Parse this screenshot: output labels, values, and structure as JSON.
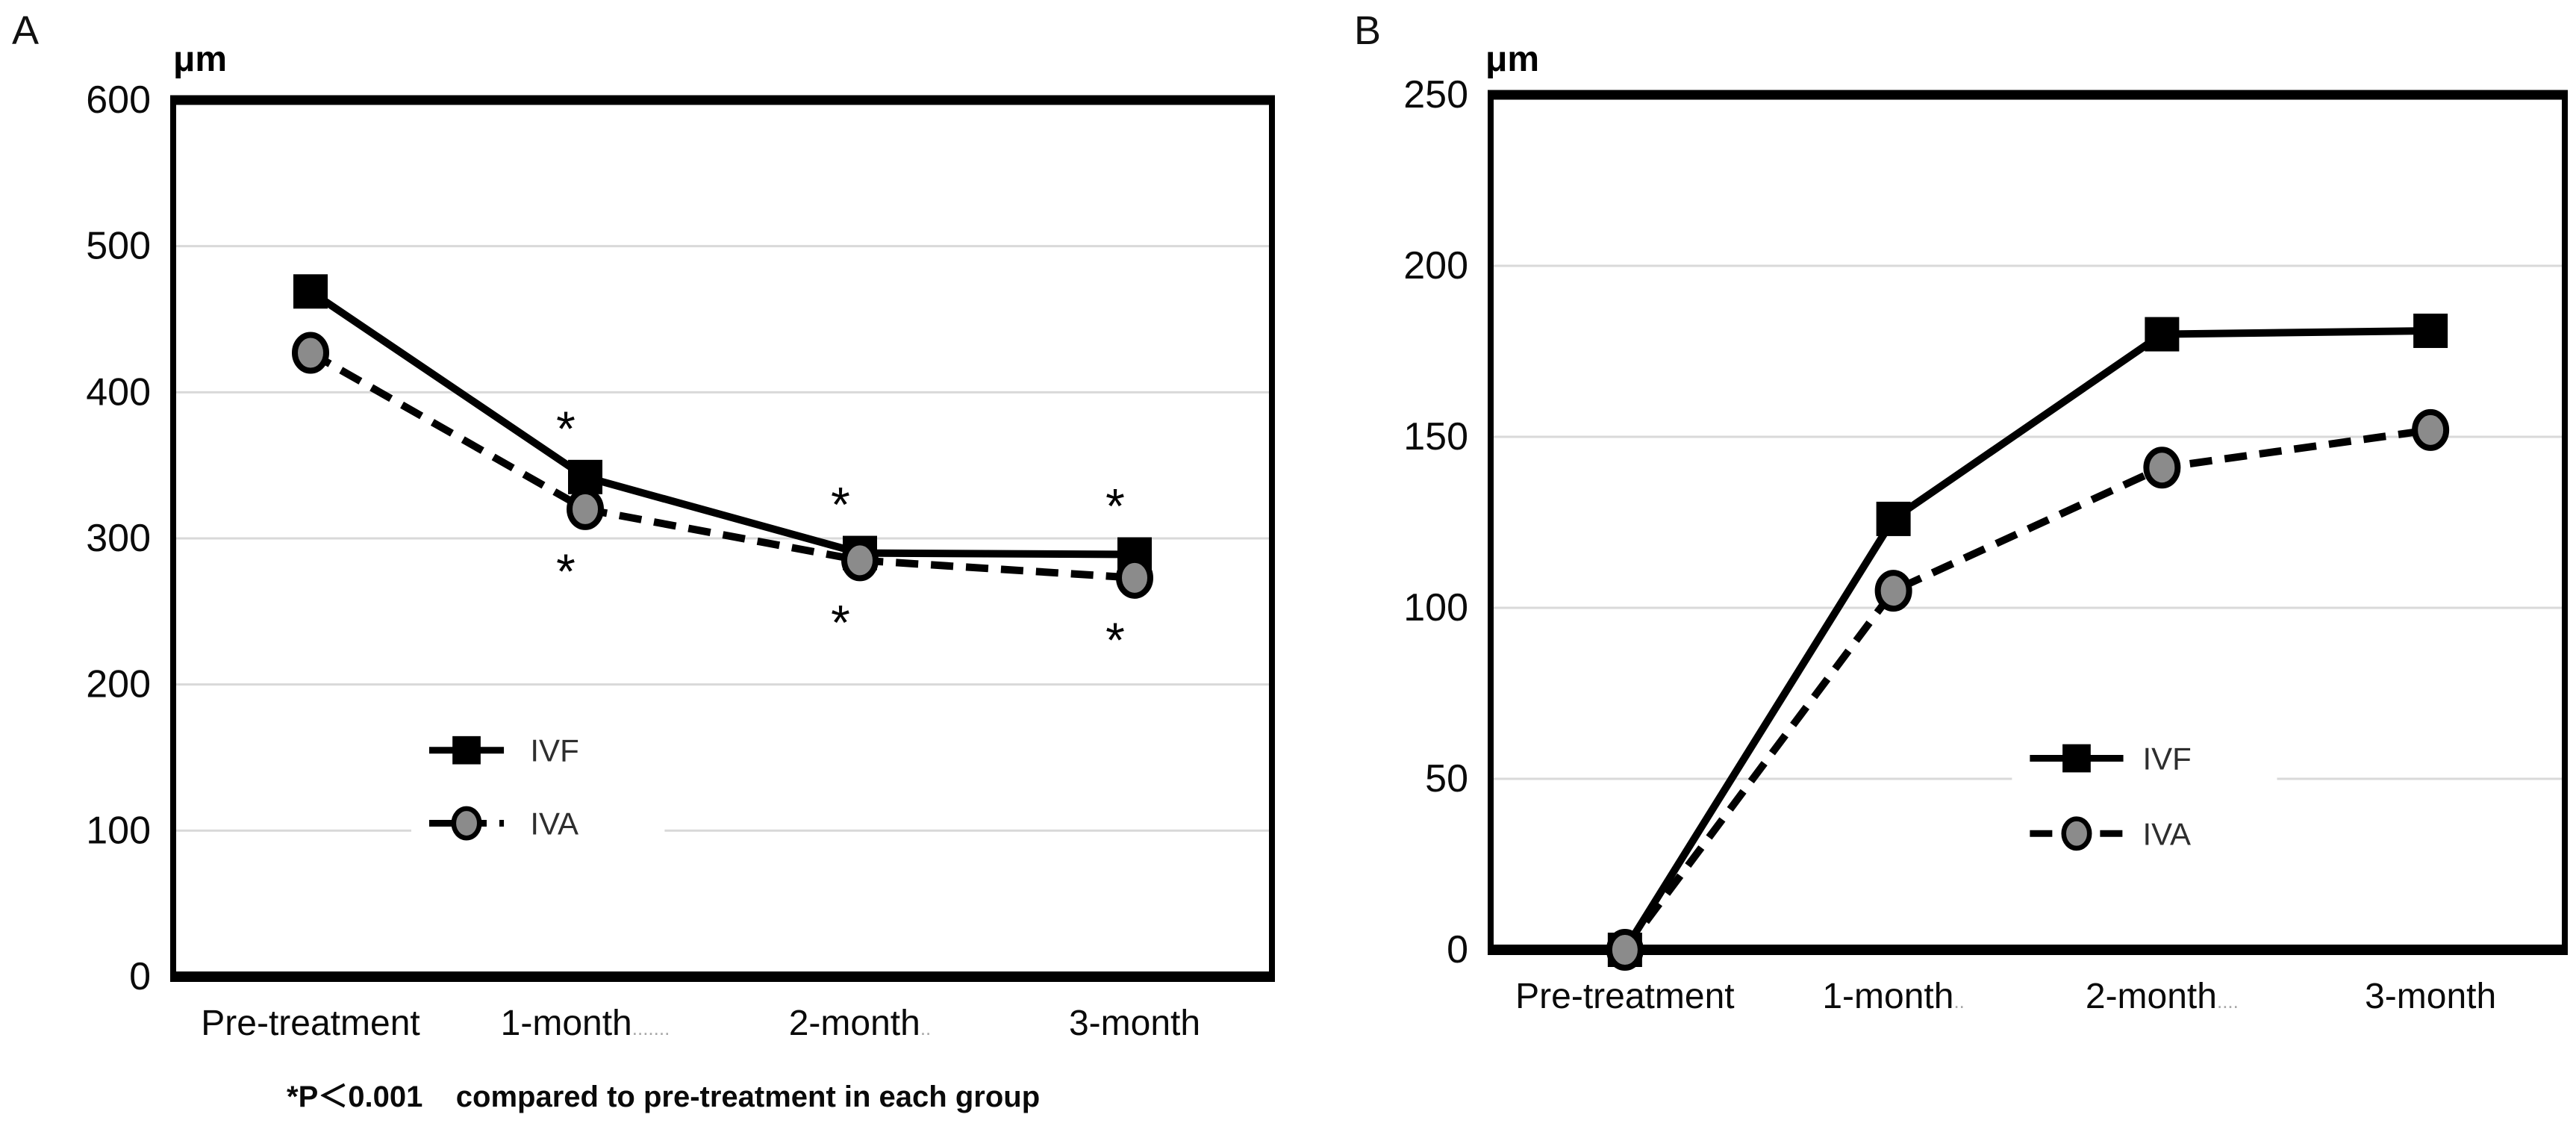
{
  "figure": {
    "background_color": "#ffffff",
    "series_color": "#000000",
    "marker_fill_gray": "#8b8b8b",
    "gridline_color": "#d9d9d9"
  },
  "chart_data": [
    {
      "type": "line",
      "panel_label": "A",
      "unit_label": "μm",
      "title": "",
      "xlabel": "",
      "ylabel": "μm",
      "ylim": [
        0,
        600
      ],
      "yticks": [
        600,
        500,
        400,
        300,
        200,
        100,
        0
      ],
      "grid": "horizontal",
      "legend_position": "inside-lower-left",
      "categories": [
        {
          "label": "Pre-treatment",
          "trail": ""
        },
        {
          "label": "1-month",
          "trail": "......."
        },
        {
          "label": "2-month",
          "trail": ".."
        },
        {
          "label": "3-month",
          "trail": ""
        }
      ],
      "series": [
        {
          "name": "IVF",
          "line_style": "solid",
          "marker": "filled-square",
          "color": "#000000",
          "values": [
            469,
            342,
            290,
            289
          ]
        },
        {
          "name": "IVA",
          "line_style": "dashed",
          "marker": "gray-circle",
          "color": "#000000",
          "marker_fill": "#8b8b8b",
          "values": [
            427,
            320,
            285,
            273
          ]
        }
      ],
      "significance": {
        "symbol": "*",
        "category_indexes": [
          1,
          2,
          3
        ],
        "note": "*P＜0.001    compared to pre-treatment in each group"
      }
    },
    {
      "type": "line",
      "panel_label": "B",
      "unit_label": "μm",
      "title": "",
      "xlabel": "",
      "ylabel": "μm",
      "ylim": [
        0,
        250
      ],
      "yticks": [
        250,
        200,
        150,
        100,
        50,
        0
      ],
      "grid": "horizontal",
      "legend_position": "inside-right-middle",
      "categories": [
        {
          "label": "Pre-treatment",
          "trail": ""
        },
        {
          "label": "1-month",
          "trail": ".."
        },
        {
          "label": "2-month",
          "trail": "...."
        },
        {
          "label": "3-month",
          "trail": ""
        }
      ],
      "series": [
        {
          "name": "IVF",
          "line_style": "solid",
          "marker": "filled-square",
          "color": "#000000",
          "values": [
            0,
            126,
            180,
            181
          ]
        },
        {
          "name": "IVA",
          "line_style": "dashed",
          "marker": "gray-circle",
          "color": "#000000",
          "marker_fill": "#8b8b8b",
          "values": [
            0,
            105,
            141,
            152
          ]
        }
      ]
    }
  ]
}
